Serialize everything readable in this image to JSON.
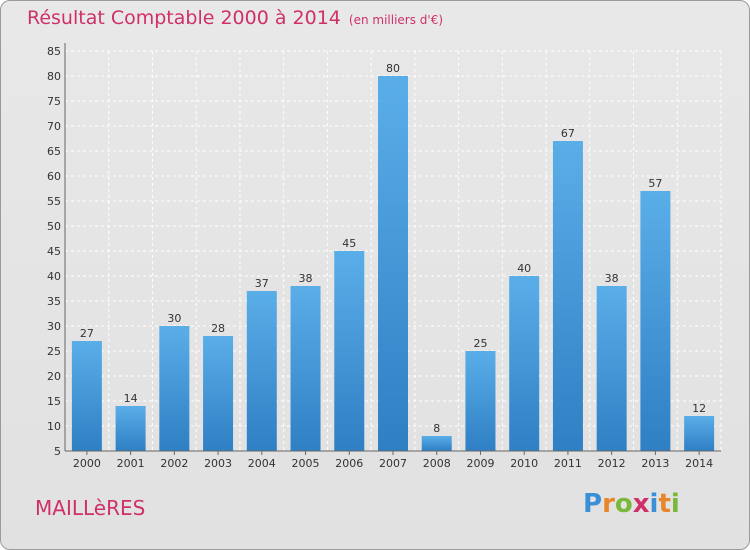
{
  "header": {
    "title_main": "Résultat Comptable 2000 à 2014",
    "title_unit": "(en milliers d'€)"
  },
  "footer": {
    "town": "MAILLèRES",
    "logo_letters": [
      "P",
      "r",
      "o",
      "x",
      "i",
      "t",
      "i"
    ],
    "logo_colors": [
      "#3a8fd6",
      "#e8862a",
      "#7ab83a",
      "#d0306a",
      "#3a8fd6",
      "#e8862a",
      "#7ab83a"
    ]
  },
  "colors": {
    "bar": "#4a9ee0",
    "bar_dark": "#2f7fc4",
    "title": "#d0306a"
  },
  "chart_data": {
    "type": "bar",
    "title": "Résultat Comptable 2000 à 2014",
    "subtitle": "(en milliers d'€)",
    "xlabel": "",
    "ylabel": "",
    "categories": [
      "2000",
      "2001",
      "2002",
      "2003",
      "2004",
      "2005",
      "2006",
      "2007",
      "2008",
      "2009",
      "2010",
      "2011",
      "2012",
      "2013",
      "2014"
    ],
    "values": [
      27,
      14,
      30,
      28,
      37,
      38,
      45,
      80,
      8,
      25,
      40,
      67,
      38,
      57,
      12
    ],
    "ylim": [
      5,
      85
    ],
    "yticks": [
      5,
      10,
      15,
      20,
      25,
      30,
      35,
      40,
      45,
      50,
      55,
      60,
      65,
      70,
      75,
      80,
      85
    ],
    "grid": true,
    "data_labels": true
  }
}
